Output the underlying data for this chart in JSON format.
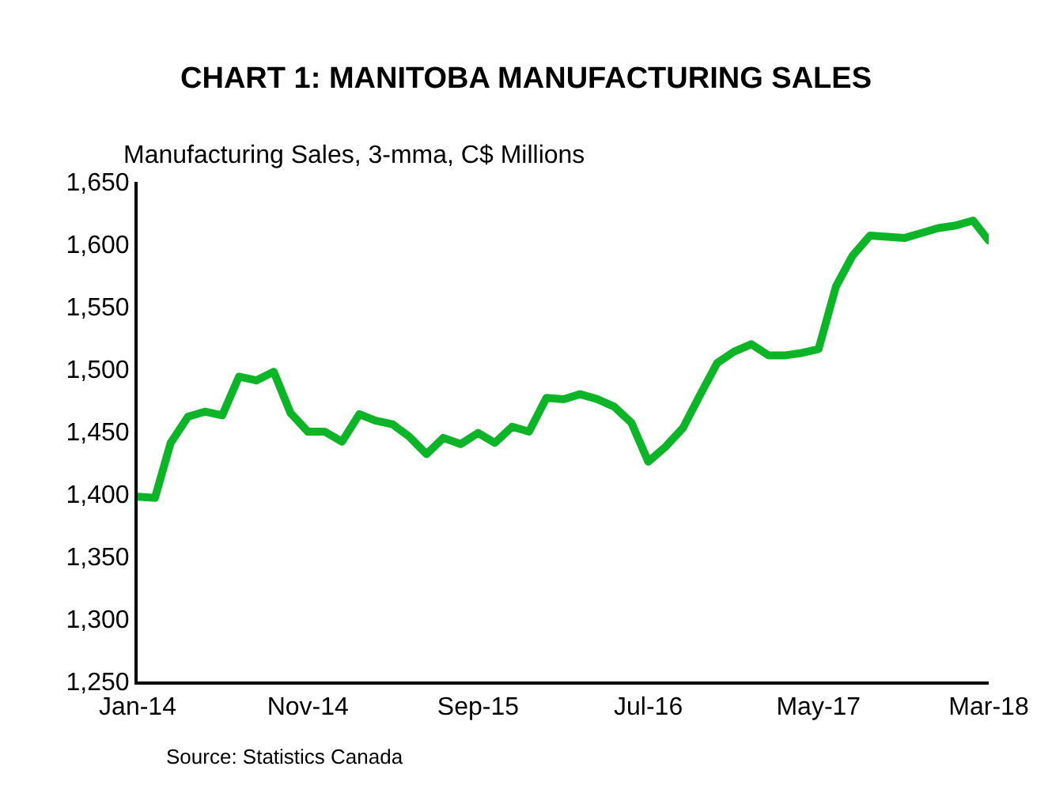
{
  "chart_data": {
    "type": "line",
    "title": "CHART 1: MANITOBA MANUFACTURING SALES",
    "ylabel": "Manufacturing Sales, 3-mma, C$ Millions",
    "x": [
      "2014-01",
      "2014-02",
      "2014-03",
      "2014-04",
      "2014-05",
      "2014-06",
      "2014-07",
      "2014-08",
      "2014-09",
      "2014-10",
      "2014-11",
      "2014-12",
      "2015-01",
      "2015-02",
      "2015-03",
      "2015-04",
      "2015-05",
      "2015-06",
      "2015-07",
      "2015-08",
      "2015-09",
      "2015-10",
      "2015-11",
      "2015-12",
      "2016-01",
      "2016-02",
      "2016-03",
      "2016-04",
      "2016-05",
      "2016-06",
      "2016-07",
      "2016-08",
      "2016-09",
      "2016-10",
      "2016-11",
      "2016-12",
      "2017-01",
      "2017-02",
      "2017-03",
      "2017-04",
      "2017-05",
      "2017-06",
      "2017-07",
      "2017-08",
      "2017-09",
      "2017-10",
      "2017-11",
      "2017-12",
      "2018-01",
      "2018-02",
      "2018-03"
    ],
    "series": [
      {
        "color": "#0cb528",
        "values": [
          1398,
          1397,
          1441,
          1462,
          1466,
          1463,
          1494,
          1491,
          1498,
          1465,
          1450,
          1450,
          1442,
          1464,
          1459,
          1456,
          1446,
          1432,
          1445,
          1440,
          1449,
          1441,
          1454,
          1450,
          1477,
          1476,
          1480,
          1476,
          1470,
          1457,
          1426,
          1438,
          1453,
          1479,
          1505,
          1514,
          1520,
          1511,
          1511,
          1513,
          1516,
          1566,
          1591,
          1607,
          1606,
          1605,
          1609,
          1613,
          1615,
          1619,
          1603
        ]
      }
    ],
    "xlim": [
      "2014-01",
      "2018-03"
    ],
    "xticks": [
      {
        "value": "2014-01",
        "label": "Jan-14"
      },
      {
        "value": "2014-11",
        "label": "Nov-14"
      },
      {
        "value": "2015-09",
        "label": "Sep-15"
      },
      {
        "value": "2016-07",
        "label": "Jul-16"
      },
      {
        "value": "2017-05",
        "label": "May-17"
      },
      {
        "value": "2018-03",
        "label": "Mar-18"
      }
    ],
    "ylim": [
      1250,
      1650
    ],
    "yticks": [
      {
        "value": 1250,
        "label": "1,250"
      },
      {
        "value": 1300,
        "label": "1,300"
      },
      {
        "value": 1350,
        "label": "1,350"
      },
      {
        "value": 1400,
        "label": "1,400"
      },
      {
        "value": 1450,
        "label": "1,450"
      },
      {
        "value": 1500,
        "label": "1,500"
      },
      {
        "value": 1550,
        "label": "1,550"
      },
      {
        "value": 1600,
        "label": "1,600"
      },
      {
        "value": 1650,
        "label": "1,650"
      }
    ],
    "grid": false,
    "annotations": [
      "Source: Statistics Canada"
    ]
  }
}
